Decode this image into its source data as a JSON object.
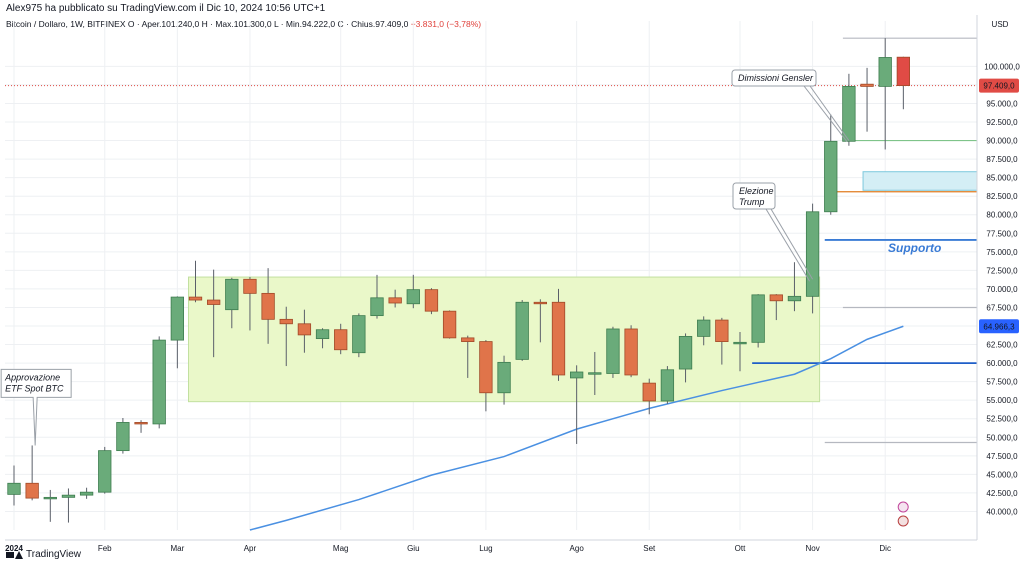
{
  "header": {
    "author_line": "Alex975 ha pubblicato su TradingView.com il Dic 10, 2024 10:56 UTC+1",
    "symbol": "Bitcoin / Dollaro, 1W, BITFINEX",
    "open": "O · Aper.101.240,0",
    "high": "H · Max.101.300,0",
    "low": "L · Min.94.222,0",
    "close": "C · Chius.97.409,0",
    "change": "−3.831,0 (−3,78%)"
  },
  "footer": {
    "brand": "TradingView"
  },
  "colors": {
    "up": "#6aab7a",
    "down": "#e0744a",
    "down_last": "#e04b45",
    "ma": "#4a90e2",
    "range_fill": "#eaf8c9",
    "range_border": "#c2e0a0",
    "support_line": "#1e5ec8",
    "orange_line": "#e07b20",
    "green_line": "#7fc48a",
    "cyan_zone": "#d4eef5",
    "price_label": "#e04b45",
    "ma_label": "#2962ff"
  },
  "chart_data": {
    "type": "candlestick",
    "y_axis": {
      "currency": "USD",
      "ylim": [
        37500,
        104500
      ],
      "ticks": [
        "40.000,0",
        "42.500,0",
        "45.000,0",
        "47.500,0",
        "50.000,0",
        "52.500,0",
        "55.000,0",
        "57.500,0",
        "60.000,0",
        "62.500,0",
        "65.000,0",
        "67.500,0",
        "70.000,0",
        "72.500,0",
        "75.000,0",
        "77.500,0",
        "80.000,0",
        "82.500,0",
        "85.000,0",
        "87.500,0",
        "90.000,0",
        "92.500,0",
        "95.000,0",
        "97.500,0",
        "100.000,0"
      ],
      "tick_values": [
        40000,
        42500,
        45000,
        47500,
        50000,
        52500,
        55000,
        57500,
        60000,
        62500,
        65000,
        67500,
        70000,
        72500,
        75000,
        77500,
        80000,
        82500,
        85000,
        87500,
        90000,
        92500,
        95000,
        97500,
        100000
      ],
      "price_label": {
        "text": "97.409,0",
        "value": 97409
      },
      "ma_label": {
        "text": "64.966,3",
        "value": 64966.3
      }
    },
    "x_axis": {
      "labels": [
        "2024",
        "Feb",
        "Mar",
        "Apr",
        "Mag",
        "Giu",
        "Lug",
        "Ago",
        "Set",
        "Ott",
        "Nov",
        "Dic"
      ],
      "label_week_index": [
        0,
        5,
        9,
        13,
        18,
        22,
        26,
        31,
        35,
        40,
        44,
        48
      ]
    },
    "candles": [
      {
        "o": 42300,
        "h": 46200,
        "l": 40800,
        "c": 43800
      },
      {
        "o": 43800,
        "h": 48900,
        "l": 41500,
        "c": 41800
      },
      {
        "o": 41800,
        "h": 42900,
        "l": 38600,
        "c": 41900
      },
      {
        "o": 41900,
        "h": 43100,
        "l": 38500,
        "c": 42200
      },
      {
        "o": 42200,
        "h": 43200,
        "l": 41700,
        "c": 42600
      },
      {
        "o": 42600,
        "h": 48700,
        "l": 42400,
        "c": 48200
      },
      {
        "o": 48200,
        "h": 52600,
        "l": 47800,
        "c": 52000
      },
      {
        "o": 52000,
        "h": 52300,
        "l": 50600,
        "c": 51800
      },
      {
        "o": 51800,
        "h": 63600,
        "l": 51200,
        "c": 63100
      },
      {
        "o": 63100,
        "h": 69000,
        "l": 59300,
        "c": 68900
      },
      {
        "o": 68900,
        "h": 73800,
        "l": 68200,
        "c": 68500
      },
      {
        "o": 68500,
        "h": 72600,
        "l": 60800,
        "c": 67900
      },
      {
        "o": 67200,
        "h": 71500,
        "l": 64700,
        "c": 71300
      },
      {
        "o": 71300,
        "h": 71600,
        "l": 64400,
        "c": 69400
      },
      {
        "o": 69400,
        "h": 72800,
        "l": 62600,
        "c": 65900
      },
      {
        "o": 65900,
        "h": 67600,
        "l": 59600,
        "c": 65300
      },
      {
        "o": 65300,
        "h": 67200,
        "l": 61400,
        "c": 63800
      },
      {
        "o": 63300,
        "h": 64700,
        "l": 62000,
        "c": 64500
      },
      {
        "o": 64500,
        "h": 65300,
        "l": 61200,
        "c": 61800
      },
      {
        "o": 61400,
        "h": 66700,
        "l": 60800,
        "c": 66400
      },
      {
        "o": 66400,
        "h": 71900,
        "l": 66000,
        "c": 68800
      },
      {
        "o": 68800,
        "h": 69900,
        "l": 67500,
        "c": 68100
      },
      {
        "o": 68000,
        "h": 71900,
        "l": 67400,
        "c": 69900
      },
      {
        "o": 69900,
        "h": 70100,
        "l": 66600,
        "c": 67000
      },
      {
        "o": 67000,
        "h": 67100,
        "l": 63300,
        "c": 63400
      },
      {
        "o": 63400,
        "h": 63700,
        "l": 58000,
        "c": 62900
      },
      {
        "o": 62900,
        "h": 63100,
        "l": 53500,
        "c": 56000
      },
      {
        "o": 56000,
        "h": 61000,
        "l": 54400,
        "c": 60100
      },
      {
        "o": 60500,
        "h": 68500,
        "l": 60300,
        "c": 68200
      },
      {
        "o": 68200,
        "h": 68600,
        "l": 62800,
        "c": 68100
      },
      {
        "o": 68200,
        "h": 70000,
        "l": 57600,
        "c": 58400
      },
      {
        "o": 58000,
        "h": 59700,
        "l": 49100,
        "c": 58800
      },
      {
        "o": 58500,
        "h": 61500,
        "l": 55700,
        "c": 58700
      },
      {
        "o": 58600,
        "h": 64900,
        "l": 58000,
        "c": 64600
      },
      {
        "o": 64600,
        "h": 65100,
        "l": 58100,
        "c": 58400
      },
      {
        "o": 57300,
        "h": 57900,
        "l": 53100,
        "c": 54900
      },
      {
        "o": 54900,
        "h": 59600,
        "l": 54500,
        "c": 59100
      },
      {
        "o": 59200,
        "h": 64000,
        "l": 57400,
        "c": 63600
      },
      {
        "o": 63600,
        "h": 66300,
        "l": 62400,
        "c": 65800
      },
      {
        "o": 65800,
        "h": 66100,
        "l": 59800,
        "c": 62900
      },
      {
        "o": 62700,
        "h": 64200,
        "l": 58900,
        "c": 62800
      },
      {
        "o": 62800,
        "h": 69300,
        "l": 62100,
        "c": 69200
      },
      {
        "o": 69200,
        "h": 69300,
        "l": 65800,
        "c": 68400
      },
      {
        "o": 68400,
        "h": 73600,
        "l": 67000,
        "c": 69000
      },
      {
        "o": 69000,
        "h": 81500,
        "l": 66700,
        "c": 80400
      },
      {
        "o": 80400,
        "h": 93500,
        "l": 80000,
        "c": 89900
      },
      {
        "o": 89900,
        "h": 99000,
        "l": 89300,
        "c": 97300
      },
      {
        "o": 97600,
        "h": 99800,
        "l": 91200,
        "c": 97300
      },
      {
        "o": 97300,
        "h": 103800,
        "l": 88800,
        "c": 101200
      },
      {
        "o": 101240,
        "h": 101300,
        "l": 94222,
        "c": 97409
      }
    ],
    "moving_average": [
      {
        "week": 13,
        "value": 37500
      },
      {
        "week": 15,
        "value": 38800
      },
      {
        "week": 19,
        "value": 41600
      },
      {
        "week": 23,
        "value": 44900
      },
      {
        "week": 27,
        "value": 47400
      },
      {
        "week": 31,
        "value": 51100
      },
      {
        "week": 35,
        "value": 53900
      },
      {
        "week": 39,
        "value": 56300
      },
      {
        "week": 43,
        "value": 58500
      },
      {
        "week": 45,
        "value": 60600
      },
      {
        "week": 47,
        "value": 63200
      },
      {
        "week": 49,
        "value": 64966
      }
    ],
    "range_box": {
      "from_week": 10,
      "to_week": 44,
      "low": 54800,
      "high": 71600
    },
    "levels": [
      {
        "name": "supporto-line",
        "value": 76600,
        "from_week": 45,
        "to": "axis",
        "color": "#3a7bd5"
      },
      {
        "name": "sixty-k-line",
        "value": 60000,
        "from_week": 41,
        "to": "axis",
        "color": "#1e5ec8"
      },
      {
        "name": "orange-line",
        "value": 83100,
        "from_week": 45,
        "to": "axis",
        "color": "#e07b20"
      },
      {
        "name": "green-line",
        "value": 90000,
        "from_week": 46,
        "to": "axis",
        "color": "#7fc48a"
      },
      {
        "name": "grey-top-line",
        "value": 103800,
        "from_week": 46,
        "to": "axis",
        "color": "#b5b8c0"
      },
      {
        "name": "grey-mid-line",
        "value": 67500,
        "from_week": 46,
        "to": "axis",
        "color": "#b5b8c0"
      },
      {
        "name": "grey-low-line",
        "value": 49300,
        "from_week": 45,
        "to": "axis",
        "color": "#b5b8c0"
      }
    ],
    "cyan_zone": {
      "from_week": 47,
      "low": 83300,
      "high": 85800
    },
    "annotations": {
      "etf": {
        "text": [
          "Approvazione",
          "ETF Spot BTC"
        ],
        "week": 1,
        "value": 48900
      },
      "gensler": {
        "text": [
          "Dimissioni Gensler"
        ],
        "week": 46,
        "value": 90000
      },
      "trump": {
        "text": [
          "Elezione",
          "Trump"
        ],
        "week": 44,
        "value": 71300
      },
      "support": {
        "text": "Supporto"
      }
    }
  }
}
